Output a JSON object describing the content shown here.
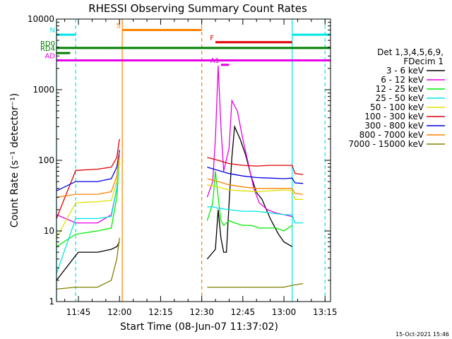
{
  "chart_data": {
    "type": "line",
    "title": "RHESSI Observing Summary Count Rates",
    "xlabel": "Start Time (08-Jun-07 11:37:02)",
    "ylabel": "Count Rate (s⁻¹ detector⁻¹)",
    "x_unit": "time HH:MM on 08-Jun-07",
    "xlim": [
      "11:37",
      "13:17"
    ],
    "ylim": [
      1,
      10000
    ],
    "y_scale": "log",
    "x_ticks": [
      "11:45",
      "12:00",
      "12:15",
      "12:30",
      "12:45",
      "13:00",
      "13:15"
    ],
    "y_ticks": [
      "1",
      "10",
      "100",
      "1000",
      "10000"
    ],
    "grid": false,
    "legend_header": [
      "Det 1,3,4,5,6,9,",
      "FDecim 1"
    ],
    "legend_position": "right",
    "footer_date": "15-Oct-2021 15:46",
    "series": [
      {
        "name": "3 - 6 keV",
        "color": "#000000",
        "points": [
          [
            "11:37",
            2
          ],
          [
            "11:44",
            4.5
          ],
          [
            "11:45",
            5
          ],
          [
            "11:52",
            5
          ],
          [
            "11:57",
            5.5
          ],
          [
            "11:59",
            6
          ],
          [
            "12:00",
            7
          ],
          [
            "12:32",
            4
          ],
          [
            "12:35",
            5.5
          ],
          [
            "12:36",
            20
          ],
          [
            "12:37",
            8
          ],
          [
            "12:38",
            5
          ],
          [
            "12:39",
            5
          ],
          [
            "12:40",
            25
          ],
          [
            "12:41",
            110
          ],
          [
            "12:42",
            300
          ],
          [
            "12:44",
            200
          ],
          [
            "12:46",
            120
          ],
          [
            "12:48",
            60
          ],
          [
            "12:50",
            35
          ],
          [
            "12:52",
            28
          ],
          [
            "12:55",
            15
          ],
          [
            "12:58",
            9
          ],
          [
            "13:00",
            7
          ],
          [
            "13:03",
            6
          ]
        ]
      },
      {
        "name": "6 - 12 keV",
        "color": "#e600e6",
        "points": [
          [
            "11:37",
            17
          ],
          [
            "11:44",
            13
          ],
          [
            "11:52",
            13
          ],
          [
            "11:57",
            17
          ],
          [
            "11:59",
            40
          ],
          [
            "12:00",
            120
          ],
          [
            "12:32",
            30
          ],
          [
            "12:34",
            50
          ],
          [
            "12:35",
            200
          ],
          [
            "12:36",
            2200
          ],
          [
            "12:37",
            300
          ],
          [
            "12:38",
            70
          ],
          [
            "12:40",
            150
          ],
          [
            "12:41",
            700
          ],
          [
            "12:43",
            500
          ],
          [
            "12:45",
            200
          ],
          [
            "12:47",
            90
          ],
          [
            "12:49",
            40
          ],
          [
            "12:51",
            25
          ],
          [
            "12:54",
            20
          ],
          [
            "12:57",
            18
          ],
          [
            "13:00",
            17
          ],
          [
            "13:03",
            16
          ]
        ]
      },
      {
        "name": "12 - 25 keV",
        "color": "#00ee00",
        "points": [
          [
            "11:37",
            6
          ],
          [
            "11:44",
            9
          ],
          [
            "11:52",
            10
          ],
          [
            "11:57",
            11
          ],
          [
            "11:59",
            30
          ],
          [
            "12:00",
            110
          ],
          [
            "12:32",
            14
          ],
          [
            "12:34",
            25
          ],
          [
            "12:35",
            70
          ],
          [
            "12:36",
            30
          ],
          [
            "12:37",
            14
          ],
          [
            "12:38",
            12
          ],
          [
            "12:40",
            14
          ],
          [
            "12:42",
            13
          ],
          [
            "12:45",
            12
          ],
          [
            "12:48",
            12
          ],
          [
            "12:51",
            11
          ],
          [
            "12:54",
            11
          ],
          [
            "12:57",
            11
          ],
          [
            "13:00",
            10
          ],
          [
            "13:03",
            12
          ]
        ]
      },
      {
        "name": "25 - 50 keV",
        "color": "#00e5e5",
        "points": [
          [
            "11:37",
            2.5
          ],
          [
            "11:44",
            15
          ],
          [
            "11:52",
            15
          ],
          [
            "11:57",
            16
          ],
          [
            "11:59",
            40
          ],
          [
            "12:00",
            110
          ],
          [
            "12:32",
            22
          ],
          [
            "12:34",
            22
          ],
          [
            "12:36",
            21
          ],
          [
            "12:40",
            20
          ],
          [
            "12:45",
            19
          ],
          [
            "12:50",
            19
          ],
          [
            "12:55",
            18
          ],
          [
            "13:00",
            17
          ],
          [
            "13:03",
            17
          ],
          [
            "13:04",
            13
          ],
          [
            "13:07",
            13
          ]
        ]
      },
      {
        "name": "50 - 100 keV",
        "color": "#e0e000",
        "points": [
          [
            "11:37",
            8
          ],
          [
            "11:44",
            25
          ],
          [
            "11:52",
            26
          ],
          [
            "11:57",
            27
          ],
          [
            "11:59",
            50
          ],
          [
            "12:00",
            110
          ],
          [
            "12:32",
            45
          ],
          [
            "12:36",
            42
          ],
          [
            "12:40",
            38
          ],
          [
            "12:45",
            37
          ],
          [
            "12:50",
            36
          ],
          [
            "12:55",
            37
          ],
          [
            "13:00",
            38
          ],
          [
            "13:03",
            37
          ],
          [
            "13:04",
            28
          ],
          [
            "13:07",
            28
          ]
        ]
      },
      {
        "name": "100 - 300 keV",
        "color": "#e00000",
        "points": [
          [
            "11:37",
            15
          ],
          [
            "11:44",
            72
          ],
          [
            "11:52",
            75
          ],
          [
            "11:57",
            80
          ],
          [
            "11:59",
            110
          ],
          [
            "12:00",
            200
          ],
          [
            "12:32",
            110
          ],
          [
            "12:36",
            100
          ],
          [
            "12:40",
            90
          ],
          [
            "12:45",
            85
          ],
          [
            "12:50",
            83
          ],
          [
            "12:55",
            85
          ],
          [
            "13:00",
            85
          ],
          [
            "13:03",
            85
          ],
          [
            "13:04",
            65
          ],
          [
            "13:07",
            63
          ]
        ]
      },
      {
        "name": "300 - 800 keV",
        "color": "#0000e0",
        "points": [
          [
            "11:37",
            37
          ],
          [
            "11:44",
            50
          ],
          [
            "11:52",
            50
          ],
          [
            "11:57",
            55
          ],
          [
            "11:59",
            80
          ],
          [
            "12:00",
            140
          ],
          [
            "12:32",
            80
          ],
          [
            "12:36",
            72
          ],
          [
            "12:40",
            65
          ],
          [
            "12:45",
            60
          ],
          [
            "12:50",
            57
          ],
          [
            "12:55",
            56
          ],
          [
            "13:00",
            55
          ],
          [
            "13:03",
            56
          ],
          [
            "13:04",
            48
          ],
          [
            "13:07",
            47
          ]
        ]
      },
      {
        "name": "800 - 7000 keV",
        "color": "#ff8000",
        "points": [
          [
            "11:37",
            30
          ],
          [
            "11:44",
            33
          ],
          [
            "11:52",
            33
          ],
          [
            "11:57",
            36
          ],
          [
            "11:59",
            60
          ],
          [
            "12:00",
            130
          ],
          [
            "12:32",
            55
          ],
          [
            "12:36",
            50
          ],
          [
            "12:40",
            45
          ],
          [
            "12:45",
            42
          ],
          [
            "12:50",
            40
          ],
          [
            "12:55",
            40
          ],
          [
            "13:00",
            40
          ],
          [
            "13:03",
            40
          ],
          [
            "13:04",
            34
          ],
          [
            "13:07",
            33
          ]
        ]
      },
      {
        "name": "7000 - 15000 keV",
        "color": "#808000",
        "points": [
          [
            "11:37",
            1.5
          ],
          [
            "11:44",
            1.6
          ],
          [
            "11:52",
            1.6
          ],
          [
            "11:57",
            2
          ],
          [
            "11:59",
            4
          ],
          [
            "12:00",
            8
          ],
          [
            "12:32",
            1.6
          ],
          [
            "12:40",
            1.6
          ],
          [
            "12:50",
            1.6
          ],
          [
            "13:00",
            1.6
          ],
          [
            "13:03",
            1.7
          ],
          [
            "13:07",
            1.8
          ]
        ]
      }
    ],
    "flag_bars": [
      {
        "label": "N",
        "color": "#00e5e5",
        "segments": [
          [
            "11:37",
            "11:44"
          ],
          [
            "13:03",
            "13:17"
          ]
        ],
        "level": 6000
      },
      {
        "label": "S",
        "color": "#ff8000",
        "segments": [
          [
            "12:01",
            "12:30"
          ]
        ],
        "level": 7000
      },
      {
        "label": "F",
        "color": "#e00000",
        "segments": [
          [
            "12:35",
            "13:03"
          ]
        ],
        "level": 4700
      },
      {
        "label": "RD0",
        "color": "#008000",
        "segments": [
          [
            "11:37",
            "13:17"
          ]
        ],
        "level": 3900
      },
      {
        "label": "RD4",
        "color": "#008000",
        "segments": [
          [
            "11:37",
            "11:42"
          ]
        ],
        "level": 3300
      },
      {
        "label": "AD",
        "color": "#e600e6",
        "segments": [
          [
            "11:37",
            "13:17"
          ]
        ],
        "level": 2600
      },
      {
        "label": "A1",
        "color": "#e600e6",
        "segments": [
          [
            "12:37",
            "12:40"
          ]
        ],
        "level": 2250
      }
    ],
    "vertical_markers": [
      {
        "color": "#ff8000",
        "style": "solid",
        "time": "12:01"
      },
      {
        "color": "#ff8000",
        "style": "dashed",
        "time": "12:30"
      },
      {
        "color": "#00e5e5",
        "style": "solid",
        "time": "11:37"
      },
      {
        "color": "#00e5e5",
        "style": "dashed",
        "time": "11:44"
      },
      {
        "color": "#00e5e5",
        "style": "solid",
        "time": "13:03"
      },
      {
        "color": "#00e5e5",
        "style": "dashed",
        "time": "13:15"
      }
    ]
  }
}
